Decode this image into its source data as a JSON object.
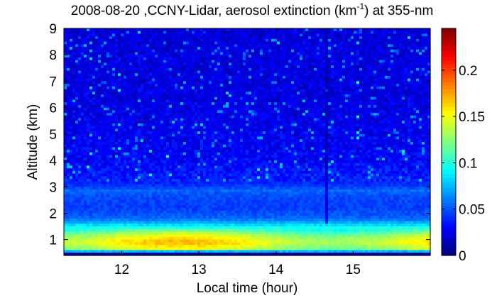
{
  "chart_data": {
    "type": "heatmap",
    "title_prefix": "2008-08-20 ,CCNY-Lidar, aerosol extinction (km",
    "title_sup": "-1",
    "title_suffix": ") at 355-nm",
    "xlabel": "Local time (hour)",
    "ylabel": "Altitude (km)",
    "xlim": [
      11.25,
      16.0
    ],
    "ylim": [
      0.4,
      9.0
    ],
    "x_ticks": [
      12,
      13,
      14,
      15
    ],
    "x_tick_labels": [
      "12",
      "13",
      "14",
      "15"
    ],
    "y_ticks": [
      1,
      2,
      3,
      4,
      5,
      6,
      7,
      8,
      9
    ],
    "y_tick_labels": [
      "1",
      "2",
      "3",
      "4",
      "5",
      "6",
      "7",
      "8",
      "9"
    ],
    "colorbar": {
      "colormap": "jet",
      "range": [
        0,
        0.245
      ],
      "ticks": [
        0,
        0.05,
        0.1,
        0.15,
        0.2
      ],
      "tick_labels": [
        "0",
        "0.05",
        "0.1",
        "0.15",
        "0.2"
      ]
    },
    "profile": [
      {
        "altitude": 0.5,
        "value": 0.005
      },
      {
        "altitude": 0.6,
        "value": 0.14
      },
      {
        "altitude": 0.9,
        "value": 0.165
      },
      {
        "altitude": 1.2,
        "value": 0.14
      },
      {
        "altitude": 1.5,
        "value": 0.09
      },
      {
        "altitude": 1.8,
        "value": 0.055
      },
      {
        "altitude": 2.2,
        "value": 0.045
      },
      {
        "altitude": 2.6,
        "value": 0.048
      },
      {
        "altitude": 2.85,
        "value": 0.055
      },
      {
        "altitude": 3.1,
        "value": 0.04
      },
      {
        "altitude": 4.0,
        "value": 0.03
      },
      {
        "altitude": 6.0,
        "value": 0.024
      },
      {
        "altitude": 9.0,
        "value": 0.022
      }
    ]
  }
}
